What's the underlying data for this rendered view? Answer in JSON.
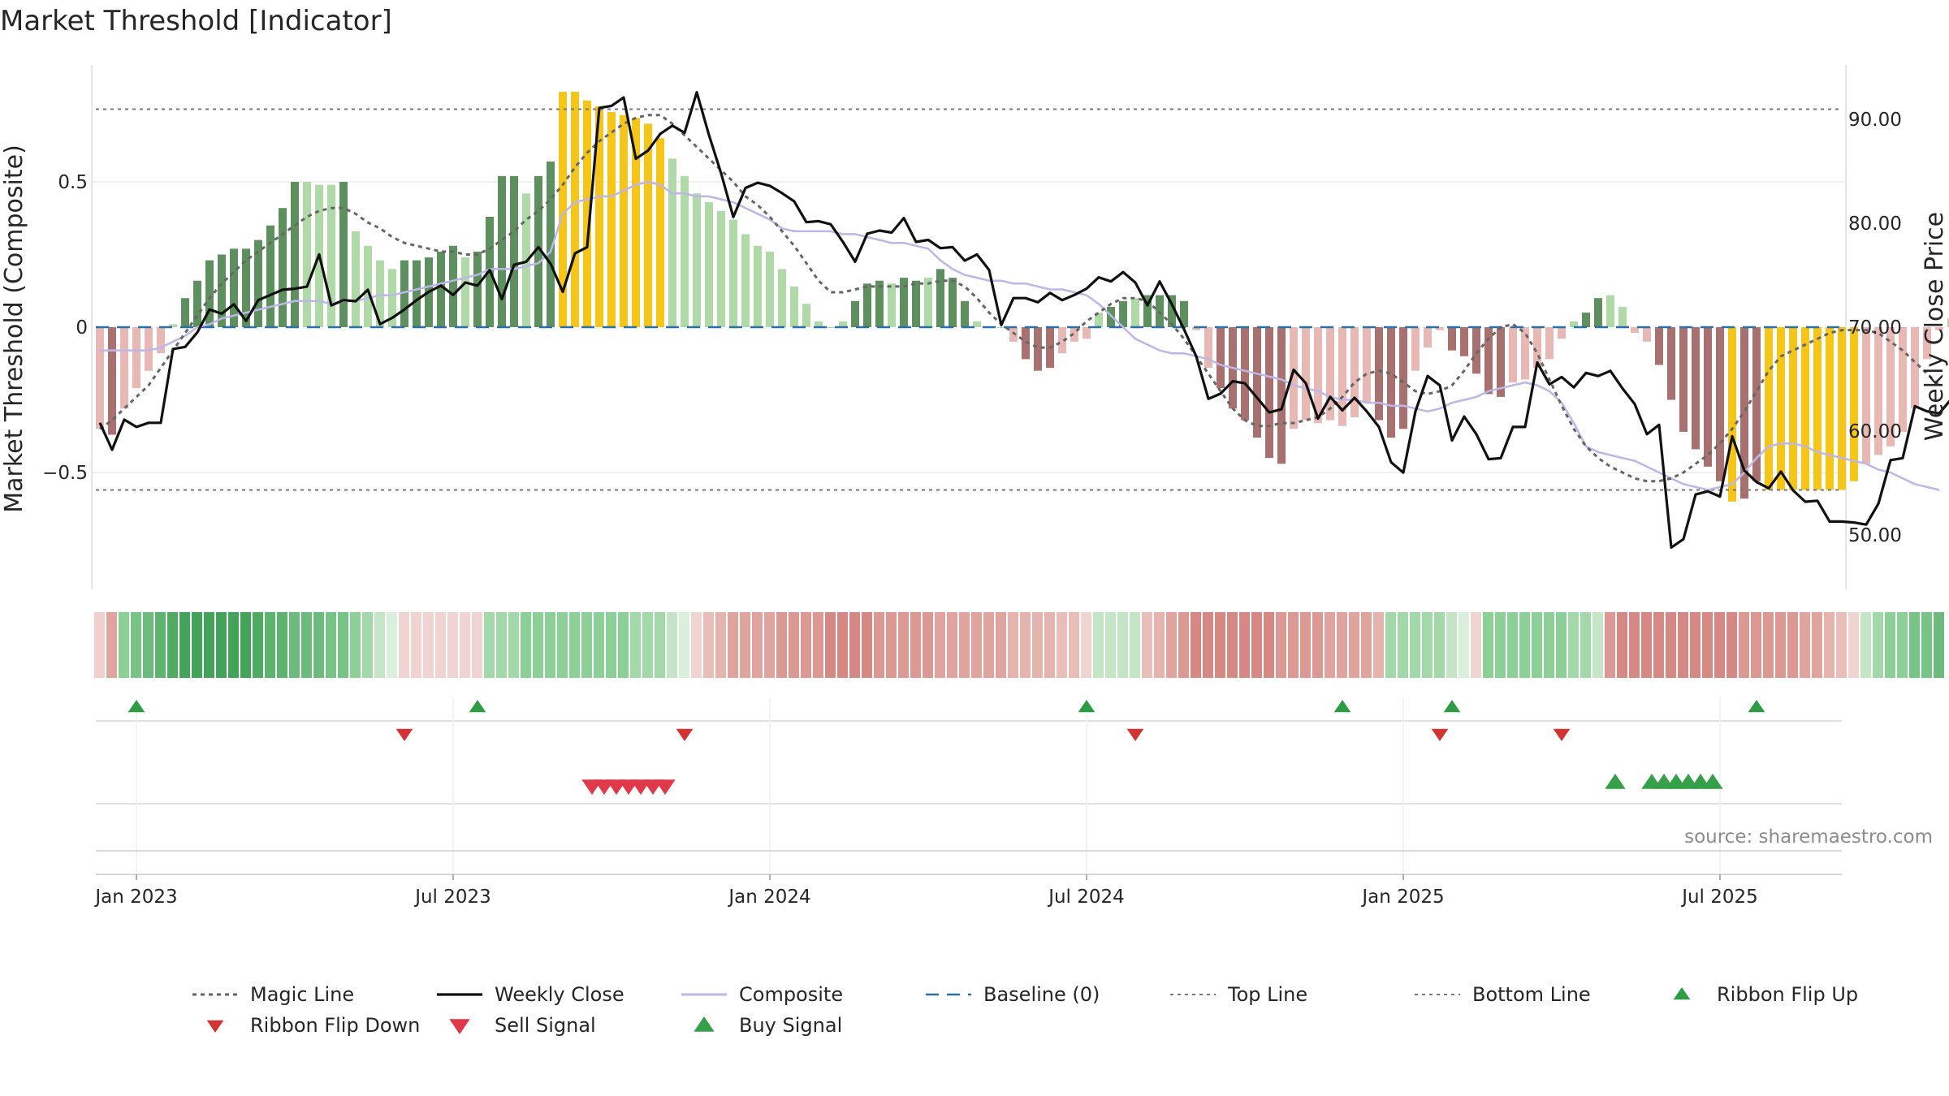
{
  "chart_data": {
    "type": "bar",
    "title": "Market Threshold [Indicator]",
    "ylabel_left": "Market Threshold (Composite)",
    "ylabel_right": "Weekly Close Price",
    "source_text": "source: sharemaestro.com",
    "ylim_left": [
      -0.9,
      0.9
    ],
    "ylim_right": [
      42.5,
      94.5
    ],
    "yticks_left": [
      {
        "value": 0.5,
        "label": "0.5"
      },
      {
        "value": 0,
        "label": "0"
      },
      {
        "value": -0.5,
        "label": "−0.5"
      }
    ],
    "yticks_right": [
      {
        "value": 90,
        "label": "90.00"
      },
      {
        "value": 80,
        "label": "80.00"
      },
      {
        "value": 70,
        "label": "70.00"
      },
      {
        "value": 60,
        "label": "60.00"
      },
      {
        "value": 50,
        "label": "50.00"
      }
    ],
    "xticks": [
      {
        "week": 3,
        "label": "Jan 2023"
      },
      {
        "week": 29,
        "label": "Jul 2023"
      },
      {
        "week": 55,
        "label": "Jan 2024"
      },
      {
        "week": 81,
        "label": "Jul 2024"
      },
      {
        "week": 107,
        "label": "Jan 2025"
      },
      {
        "week": 133,
        "label": "Jul 2025"
      }
    ],
    "top_line": 0.75,
    "bottom_line": -0.56,
    "bar_values": [
      -0.35,
      -0.37,
      -0.28,
      -0.21,
      -0.15,
      -0.09,
      0.01,
      0.1,
      0.16,
      0.23,
      0.25,
      0.27,
      0.27,
      0.3,
      0.35,
      0.41,
      0.5,
      0.5,
      0.49,
      0.49,
      0.5,
      0.33,
      0.28,
      0.23,
      0.2,
      0.23,
      0.23,
      0.24,
      0.26,
      0.28,
      0.24,
      0.26,
      0.38,
      0.52,
      0.52,
      0.46,
      0.52,
      0.57,
      0.81,
      0.81,
      0.78,
      0.76,
      0.74,
      0.73,
      0.72,
      0.7,
      0.65,
      0.58,
      0.52,
      0.46,
      0.43,
      0.4,
      0.37,
      0.32,
      0.28,
      0.26,
      0.2,
      0.14,
      0.08,
      0.02,
      0.0,
      0.02,
      0.09,
      0.15,
      0.16,
      0.15,
      0.17,
      0.16,
      0.17,
      0.2,
      0.17,
      0.09,
      0.02,
      0.0,
      0.0,
      -0.05,
      -0.11,
      -0.15,
      -0.14,
      -0.09,
      -0.05,
      -0.04,
      0.05,
      0.07,
      0.09,
      0.1,
      0.11,
      0.11,
      0.11,
      0.09,
      -0.01,
      -0.14,
      -0.21,
      -0.28,
      -0.32,
      -0.38,
      -0.45,
      -0.47,
      -0.35,
      -0.32,
      -0.33,
      -0.32,
      -0.34,
      -0.31,
      -0.26,
      -0.32,
      -0.38,
      -0.35,
      -0.15,
      -0.07,
      -0.01,
      -0.08,
      -0.1,
      -0.16,
      -0.23,
      -0.24,
      -0.19,
      -0.18,
      -0.14,
      -0.11,
      -0.04,
      0.02,
      0.05,
      0.1,
      0.11,
      0.07,
      -0.02,
      -0.05,
      -0.13,
      -0.25,
      -0.36,
      -0.42,
      -0.48,
      -0.53,
      -0.6,
      -0.59,
      -0.53,
      -0.56,
      -0.56,
      -0.56,
      -0.56,
      -0.56,
      -0.56,
      -0.56,
      -0.53,
      -0.47,
      -0.44,
      -0.41,
      -0.36,
      -0.28,
      -0.11,
      -0.01,
      0.03,
      0.09,
      0.05
    ],
    "bar_status": [
      "light_red",
      "dark_red",
      "light_red",
      "light_red",
      "light_red",
      "light_red",
      "light_green",
      "dark_green",
      "dark_green",
      "dark_green",
      "dark_green",
      "dark_green",
      "dark_green",
      "dark_green",
      "dark_green",
      "dark_green",
      "dark_green",
      "light_green",
      "light_green",
      "light_green",
      "dark_green",
      "light_green",
      "light_green",
      "light_green",
      "light_green",
      "dark_green",
      "dark_green",
      "dark_green",
      "dark_green",
      "dark_green",
      "light_green",
      "dark_green",
      "dark_green",
      "dark_green",
      "dark_green",
      "light_green",
      "dark_green",
      "dark_green",
      "gold",
      "gold",
      "gold",
      "gold",
      "gold",
      "gold",
      "gold",
      "gold",
      "gold",
      "light_green",
      "light_green",
      "light_green",
      "light_green",
      "light_green",
      "light_green",
      "light_green",
      "light_green",
      "light_green",
      "light_green",
      "light_green",
      "light_green",
      "light_green",
      "light_green",
      "light_green",
      "dark_green",
      "dark_green",
      "dark_green",
      "light_green",
      "dark_green",
      "dark_green",
      "light_green",
      "dark_green",
      "dark_green",
      "dark_green",
      "light_green",
      "light_green",
      "light_green",
      "light_red",
      "dark_red",
      "dark_red",
      "dark_red",
      "light_red",
      "light_red",
      "light_red",
      "light_green",
      "dark_green",
      "dark_green",
      "light_green",
      "dark_green",
      "dark_green",
      "dark_green",
      "dark_green",
      "light_red",
      "light_red",
      "dark_red",
      "dark_red",
      "dark_red",
      "dark_red",
      "dark_red",
      "dark_red",
      "light_red",
      "light_red",
      "light_red",
      "light_red",
      "light_red",
      "light_red",
      "light_red",
      "dark_red",
      "dark_red",
      "dark_red",
      "light_red",
      "light_red",
      "light_red",
      "dark_red",
      "dark_red",
      "dark_red",
      "dark_red",
      "dark_red",
      "light_red",
      "light_red",
      "light_red",
      "light_red",
      "light_red",
      "light_green",
      "dark_green",
      "dark_green",
      "light_green",
      "light_green",
      "light_red",
      "light_red",
      "dark_red",
      "dark_red",
      "dark_red",
      "dark_red",
      "dark_red",
      "dark_red",
      "gold",
      "dark_red",
      "dark_red",
      "gold",
      "gold",
      "gold",
      "gold",
      "gold",
      "gold",
      "gold",
      "gold",
      "light_red",
      "light_red",
      "light_red",
      "light_red",
      "light_red",
      "light_red",
      "light_red",
      "light_green",
      "light_green",
      "dark_green",
      "light_green"
    ],
    "ribbon_colors": [
      "#f0cfcc",
      "#e0a49e",
      "#8ccf97",
      "#78c386",
      "#6cbb7d",
      "#5cb46e",
      "#4faa62",
      "#43a35a",
      "#43a35a",
      "#43a35a",
      "#43a35a",
      "#43a35a",
      "#43a35a",
      "#4faa62",
      "#5cb46e",
      "#5cb46e",
      "#6cbb7d",
      "#6cbb7d",
      "#6cbb7d",
      "#78c386",
      "#78c386",
      "#8ccf97",
      "#a3d8ab",
      "#c4e6c6",
      "#dcefdc",
      "#f0d4d1",
      "#f0d4d1",
      "#f0d4d1",
      "#f0d4d1",
      "#f0d4d1",
      "#f0d4d1",
      "#f0d4d1",
      "#a3d8ab",
      "#a3d8ab",
      "#a3d8ab",
      "#8ccf97",
      "#8ccf97",
      "#8ccf97",
      "#8ccf97",
      "#8ccf97",
      "#8ccf97",
      "#8ccf97",
      "#8ccf97",
      "#8ccf97",
      "#a3d8ab",
      "#a3d8ab",
      "#a3d8ab",
      "#c4e6c6",
      "#dcefdc",
      "#f0d4d1",
      "#e9bdb8",
      "#e6b4af",
      "#e0a49e",
      "#e0a49e",
      "#e0a49e",
      "#e0a49e",
      "#dc9893",
      "#dc9893",
      "#dc9893",
      "#dc9893",
      "#d68984",
      "#d68984",
      "#d68984",
      "#d68984",
      "#dc9893",
      "#dc9893",
      "#dc9893",
      "#dc9893",
      "#dc9893",
      "#e0a49e",
      "#e0a49e",
      "#e0a49e",
      "#e0a49e",
      "#e0a49e",
      "#e0a49e",
      "#e6b4af",
      "#e6b4af",
      "#e6b4af",
      "#e6b4af",
      "#e9bdb8",
      "#e9bdb8",
      "#f0d4d1",
      "#c4e6c6",
      "#c4e6c6",
      "#c4e6c6",
      "#c4e6c6",
      "#e9bdb8",
      "#e6b4af",
      "#e0a49e",
      "#dc9893",
      "#d68984",
      "#d68984",
      "#d68984",
      "#d68984",
      "#d68984",
      "#d68984",
      "#d68984",
      "#dc9893",
      "#dc9893",
      "#dc9893",
      "#dc9893",
      "#e0a49e",
      "#e0a49e",
      "#e0a49e",
      "#e0a49e",
      "#e6b4af",
      "#a3d8ab",
      "#a3d8ab",
      "#a3d8ab",
      "#a3d8ab",
      "#a3d8ab",
      "#c4e6c6",
      "#dcefdc",
      "#f0d4d1",
      "#8ccf97",
      "#8ccf97",
      "#8ccf97",
      "#8ccf97",
      "#8ccf97",
      "#8ccf97",
      "#8ccf97",
      "#a3d8ab",
      "#a3d8ab",
      "#c4e6c6",
      "#dc9893",
      "#d68984",
      "#d68984",
      "#d68984",
      "#d68984",
      "#d68984",
      "#d68984",
      "#d68984",
      "#d68984",
      "#d68984",
      "#d68984",
      "#dc9893",
      "#dc9893",
      "#dc9893",
      "#dc9893",
      "#dc9893",
      "#e0a49e",
      "#e0a49e",
      "#e6b4af",
      "#e9bdb8",
      "#f0d4d1",
      "#c4e6c6",
      "#a3d8ab",
      "#8ccf97",
      "#8ccf97",
      "#78c386",
      "#78c386",
      "#6cbb7d"
    ],
    "weekly_close": [
      60.8,
      58.2,
      61.1,
      60.4,
      60.8,
      60.8,
      67.9,
      68.1,
      69.5,
      71.7,
      71.3,
      72.2,
      70.6,
      72.6,
      73.1,
      73.6,
      73.7,
      73.9,
      77.0,
      72.1,
      72.6,
      72.5,
      73.6,
      70.3,
      70.9,
      71.7,
      72.6,
      73.4,
      74.0,
      73.1,
      74.3,
      74.0,
      75.5,
      72.7,
      76.0,
      76.3,
      77.7,
      76.1,
      73.4,
      77.1,
      77.7,
      91.1,
      91.3,
      92.1,
      86.2,
      87.0,
      88.6,
      89.4,
      88.7,
      92.6,
      88.5,
      84.8,
      80.6,
      83.4,
      83.9,
      83.6,
      82.9,
      82.1,
      80.1,
      80.2,
      79.9,
      78.2,
      76.3,
      79.0,
      79.3,
      79.1,
      80.5,
      78.2,
      78.4,
      77.6,
      77.7,
      76.4,
      77.0,
      75.5,
      70.2,
      72.8,
      72.8,
      72.4,
      73.3,
      72.6,
      73.1,
      73.7,
      74.8,
      74.4,
      75.3,
      74.3,
      72.1,
      74.4,
      72.2,
      69.8,
      67.2,
      63.1,
      63.6,
      64.8,
      64.6,
      63.2,
      61.8,
      62.1,
      65.9,
      64.6,
      61.2,
      63.3,
      62.0,
      63.2,
      61.9,
      60.4,
      57.0,
      56.0,
      61.9,
      65.3,
      64.4,
      59.1,
      61.4,
      59.7,
      57.3,
      57.4,
      60.4,
      60.4,
      66.6,
      64.5,
      65.2,
      64.2,
      65.6,
      65.3,
      65.8,
      64.1,
      62.6,
      59.7,
      60.6,
      48.8,
      49.6,
      53.9,
      54.2,
      53.7,
      59.5,
      56.2,
      55.1,
      54.5,
      56.1,
      54.3,
      53.2,
      53.3,
      51.3,
      51.3,
      51.2,
      51.0,
      53.0,
      57.2,
      57.4,
      62.4,
      61.9,
      61.7,
      63.1,
      58.3
    ],
    "magic_line": [
      -0.35,
      -0.32,
      -0.28,
      -0.24,
      -0.2,
      -0.14,
      -0.08,
      -0.02,
      0.04,
      0.1,
      0.15,
      0.19,
      0.23,
      0.26,
      0.29,
      0.32,
      0.35,
      0.38,
      0.4,
      0.41,
      0.41,
      0.39,
      0.36,
      0.34,
      0.31,
      0.29,
      0.28,
      0.27,
      0.26,
      0.26,
      0.25,
      0.25,
      0.27,
      0.3,
      0.33,
      0.37,
      0.4,
      0.44,
      0.49,
      0.55,
      0.6,
      0.64,
      0.67,
      0.7,
      0.72,
      0.73,
      0.73,
      0.7,
      0.66,
      0.62,
      0.58,
      0.54,
      0.5,
      0.45,
      0.42,
      0.38,
      0.33,
      0.28,
      0.22,
      0.16,
      0.12,
      0.12,
      0.13,
      0.14,
      0.14,
      0.14,
      0.14,
      0.15,
      0.15,
      0.16,
      0.16,
      0.14,
      0.1,
      0.05,
      0.01,
      -0.02,
      -0.05,
      -0.07,
      -0.07,
      -0.05,
      -0.02,
      0.02,
      0.05,
      0.08,
      0.1,
      0.1,
      0.09,
      0.05,
      0.01,
      -0.04,
      -0.1,
      -0.16,
      -0.22,
      -0.28,
      -0.32,
      -0.34,
      -0.34,
      -0.33,
      -0.33,
      -0.32,
      -0.31,
      -0.28,
      -0.24,
      -0.19,
      -0.16,
      -0.15,
      -0.16,
      -0.19,
      -0.22,
      -0.23,
      -0.22,
      -0.2,
      -0.15,
      -0.09,
      -0.04,
      -0.0,
      0.01,
      -0.02,
      -0.09,
      -0.18,
      -0.27,
      -0.35,
      -0.41,
      -0.45,
      -0.48,
      -0.5,
      -0.52,
      -0.53,
      -0.53,
      -0.52,
      -0.5,
      -0.47,
      -0.44,
      -0.4,
      -0.35,
      -0.29,
      -0.22,
      -0.15,
      -0.1,
      -0.08,
      -0.06,
      -0.04,
      -0.02,
      -0.01,
      -0.01,
      -0.01,
      -0.02,
      -0.05,
      -0.08,
      -0.12,
      -0.16,
      -0.2
    ],
    "composite_line": [
      -0.08,
      -0.08,
      -0.08,
      -0.08,
      -0.08,
      -0.07,
      -0.05,
      -0.03,
      0.0,
      0.01,
      0.03,
      0.04,
      0.05,
      0.06,
      0.07,
      0.08,
      0.09,
      0.09,
      0.09,
      0.08,
      0.09,
      0.09,
      0.1,
      0.11,
      0.11,
      0.12,
      0.13,
      0.14,
      0.15,
      0.16,
      0.17,
      0.18,
      0.2,
      0.2,
      0.2,
      0.21,
      0.22,
      0.26,
      0.39,
      0.43,
      0.44,
      0.45,
      0.45,
      0.47,
      0.49,
      0.5,
      0.49,
      0.46,
      0.46,
      0.45,
      0.45,
      0.44,
      0.43,
      0.41,
      0.39,
      0.37,
      0.34,
      0.33,
      0.33,
      0.33,
      0.33,
      0.32,
      0.32,
      0.31,
      0.3,
      0.29,
      0.29,
      0.28,
      0.27,
      0.23,
      0.2,
      0.18,
      0.17,
      0.16,
      0.16,
      0.15,
      0.15,
      0.14,
      0.13,
      0.13,
      0.12,
      0.11,
      0.08,
      0.04,
      0.0,
      -0.04,
      -0.06,
      -0.08,
      -0.09,
      -0.09,
      -0.1,
      -0.11,
      -0.13,
      -0.14,
      -0.15,
      -0.16,
      -0.17,
      -0.18,
      -0.2,
      -0.21,
      -0.22,
      -0.24,
      -0.25,
      -0.25,
      -0.26,
      -0.26,
      -0.27,
      -0.27,
      -0.28,
      -0.29,
      -0.28,
      -0.26,
      -0.25,
      -0.24,
      -0.22,
      -0.21,
      -0.2,
      -0.19,
      -0.2,
      -0.22,
      -0.26,
      -0.33,
      -0.41,
      -0.43,
      -0.44,
      -0.45,
      -0.46,
      -0.48,
      -0.5,
      -0.52,
      -0.54,
      -0.55,
      -0.56,
      -0.55,
      -0.54,
      -0.5,
      -0.45,
      -0.41,
      -0.4,
      -0.4,
      -0.41,
      -0.43,
      -0.44,
      -0.45,
      -0.46,
      -0.47,
      -0.49,
      -0.5,
      -0.52,
      -0.54,
      -0.55,
      -0.56
    ],
    "ribbon_flip_up_weeks": [
      3,
      31,
      81,
      102,
      111,
      136
    ],
    "ribbon_flip_down_weeks": [
      25,
      48,
      85,
      110,
      120
    ],
    "sell_signal_weeks": [
      40,
      41,
      42,
      43,
      44,
      45,
      46
    ],
    "buy_signal_weeks": [
      124,
      127,
      128,
      129,
      130,
      131,
      132
    ],
    "legend": [
      {
        "key": "magic",
        "label": "Magic Line"
      },
      {
        "key": "close",
        "label": "Weekly Close"
      },
      {
        "key": "composite",
        "label": "Composite"
      },
      {
        "key": "baseline",
        "label": "Baseline (0)"
      },
      {
        "key": "top",
        "label": "Top Line"
      },
      {
        "key": "bottom",
        "label": "Bottom Line"
      },
      {
        "key": "flipup",
        "label": "Ribbon Flip Up"
      },
      {
        "key": "flipdown",
        "label": "Ribbon Flip Down"
      },
      {
        "key": "sell",
        "label": "Sell Signal"
      },
      {
        "key": "buy",
        "label": "Buy Signal"
      }
    ],
    "colors": {
      "dark_green": "#5e8f5e",
      "light_green": "#b0d9a8",
      "dark_red": "#a8716f",
      "light_red": "#e8b9b4",
      "gold": "#f5c518",
      "weekly_close": "#111111",
      "composite": "#bdb6e8",
      "magic_line": "#666666",
      "baseline": "#2a6fa8",
      "threshold": "#777777",
      "flip_up": "#2e9b45",
      "flip_down": "#d23434",
      "sell": "#e0394a",
      "buy": "#35a048",
      "grid": "#ececec"
    }
  }
}
